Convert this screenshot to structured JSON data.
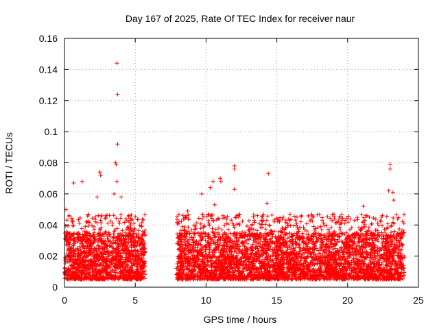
{
  "chart_data": {
    "type": "scatter",
    "title": "Day 167 of 2025, Rate Of TEC Index for receiver naur",
    "xlabel": "GPS time / hours",
    "ylabel": "ROTI / TECUs",
    "xlim": [
      0,
      25
    ],
    "ylim": [
      0,
      0.16
    ],
    "xticks": [
      0,
      5,
      10,
      15,
      20,
      25
    ],
    "yticks": [
      0,
      0.02,
      0.04,
      0.06,
      0.08,
      0.1,
      0.12,
      0.14,
      0.16
    ],
    "grid": true,
    "marker": "+",
    "color": "#ff0000",
    "segments": [
      {
        "x_start": 0.0,
        "x_end": 5.7,
        "typical_range": [
          0.005,
          0.035
        ]
      },
      {
        "x_start": 7.9,
        "x_end": 24.0,
        "typical_range": [
          0.005,
          0.035
        ]
      }
    ],
    "notable_points": [
      {
        "x": 3.7,
        "y": 0.144
      },
      {
        "x": 3.75,
        "y": 0.124
      },
      {
        "x": 3.75,
        "y": 0.092
      },
      {
        "x": 3.6,
        "y": 0.08
      },
      {
        "x": 3.65,
        "y": 0.079
      },
      {
        "x": 2.5,
        "y": 0.074
      },
      {
        "x": 2.55,
        "y": 0.072
      },
      {
        "x": 3.7,
        "y": 0.068
      },
      {
        "x": 1.25,
        "y": 0.068
      },
      {
        "x": 0.65,
        "y": 0.067
      },
      {
        "x": 3.5,
        "y": 0.06
      },
      {
        "x": 4.0,
        "y": 0.058
      },
      {
        "x": 2.3,
        "y": 0.058
      },
      {
        "x": 0.1,
        "y": 0.05
      },
      {
        "x": 11.0,
        "y": 0.07
      },
      {
        "x": 11.05,
        "y": 0.068
      },
      {
        "x": 10.5,
        "y": 0.068
      },
      {
        "x": 10.3,
        "y": 0.064
      },
      {
        "x": 9.7,
        "y": 0.06
      },
      {
        "x": 10.6,
        "y": 0.053
      },
      {
        "x": 12.0,
        "y": 0.078
      },
      {
        "x": 12.0,
        "y": 0.076
      },
      {
        "x": 12.0,
        "y": 0.063
      },
      {
        "x": 14.4,
        "y": 0.073
      },
      {
        "x": 14.3,
        "y": 0.054
      },
      {
        "x": 8.7,
        "y": 0.049
      },
      {
        "x": 12.3,
        "y": 0.045
      },
      {
        "x": 23.0,
        "y": 0.079
      },
      {
        "x": 23.0,
        "y": 0.076
      },
      {
        "x": 22.9,
        "y": 0.062
      },
      {
        "x": 23.2,
        "y": 0.061
      },
      {
        "x": 23.25,
        "y": 0.056
      },
      {
        "x": 21.1,
        "y": 0.052
      },
      {
        "x": 22.4,
        "y": 0.045
      },
      {
        "x": 19.8,
        "y": 0.041
      },
      {
        "x": 17.6,
        "y": 0.039
      }
    ]
  }
}
